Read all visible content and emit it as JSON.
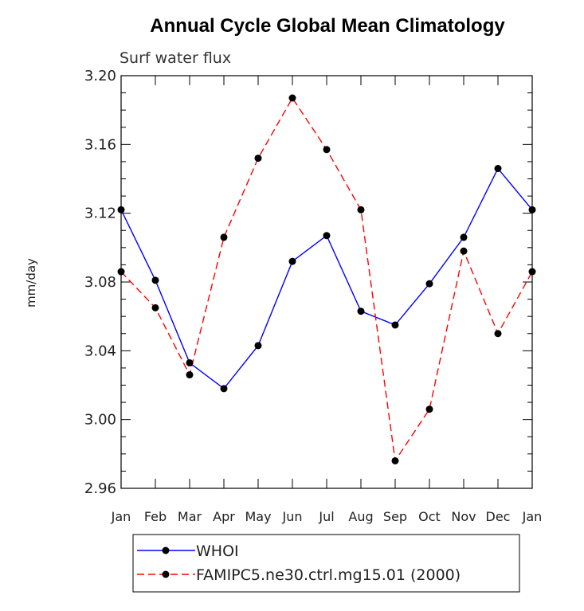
{
  "chart_data": {
    "type": "line",
    "title": "Annual Cycle Global Mean Climatology",
    "subtitle": "Surf water flux",
    "ylabel": "mm/day",
    "xlabel": "",
    "categories": [
      "Jan",
      "Feb",
      "Mar",
      "Apr",
      "May",
      "Jun",
      "Jul",
      "Aug",
      "Sep",
      "Oct",
      "Nov",
      "Dec",
      "Jan"
    ],
    "ylim": [
      2.96,
      3.2
    ],
    "yticks": [
      "3.20",
      "3.16",
      "3.12",
      "3.08",
      "3.04",
      "3.00",
      "2.96"
    ],
    "grid": false,
    "legend_position": "bottom",
    "series": [
      {
        "name": "WHOI",
        "color": "#0000ff",
        "dash": "solid",
        "values": [
          3.122,
          3.081,
          3.033,
          3.018,
          3.043,
          3.092,
          3.107,
          3.063,
          3.055,
          3.079,
          3.106,
          3.146,
          3.122
        ]
      },
      {
        "name": "FAMIPC5.ne30.ctrl.mg15.01 (2000)",
        "color": "#ff0000",
        "dash": "dashed",
        "values": [
          3.086,
          3.065,
          3.026,
          3.106,
          3.152,
          3.187,
          3.157,
          3.122,
          2.976,
          3.006,
          3.098,
          3.05,
          3.086
        ]
      }
    ]
  }
}
